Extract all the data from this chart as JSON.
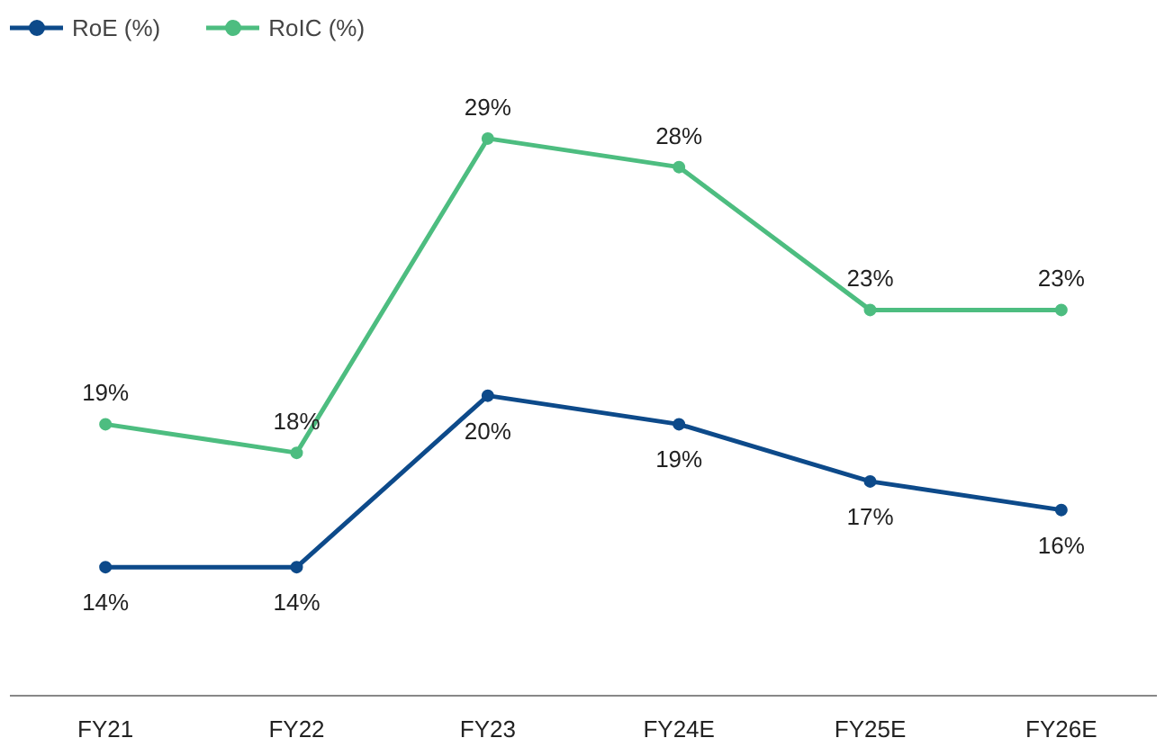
{
  "chart_data": {
    "type": "line",
    "categories": [
      "FY21",
      "FY22",
      "FY23",
      "FY24E",
      "FY25E",
      "FY26E"
    ],
    "series": [
      {
        "name": "RoE (%)",
        "color": "#0d4a8a",
        "values": [
          14,
          14,
          20,
          19,
          17,
          16
        ],
        "value_labels": [
          "14%",
          "14%",
          "20%",
          "19%",
          "17%",
          "16%"
        ]
      },
      {
        "name": "RoIC (%)",
        "color": "#4dbd80",
        "values": [
          19,
          18,
          29,
          28,
          23,
          23
        ],
        "value_labels": [
          "19%",
          "18%",
          "29%",
          "28%",
          "23%",
          "23%"
        ]
      }
    ],
    "tick_labels": "x",
    "grid": false,
    "legend": "top left",
    "marker": "circle",
    "line_style": "solid"
  }
}
